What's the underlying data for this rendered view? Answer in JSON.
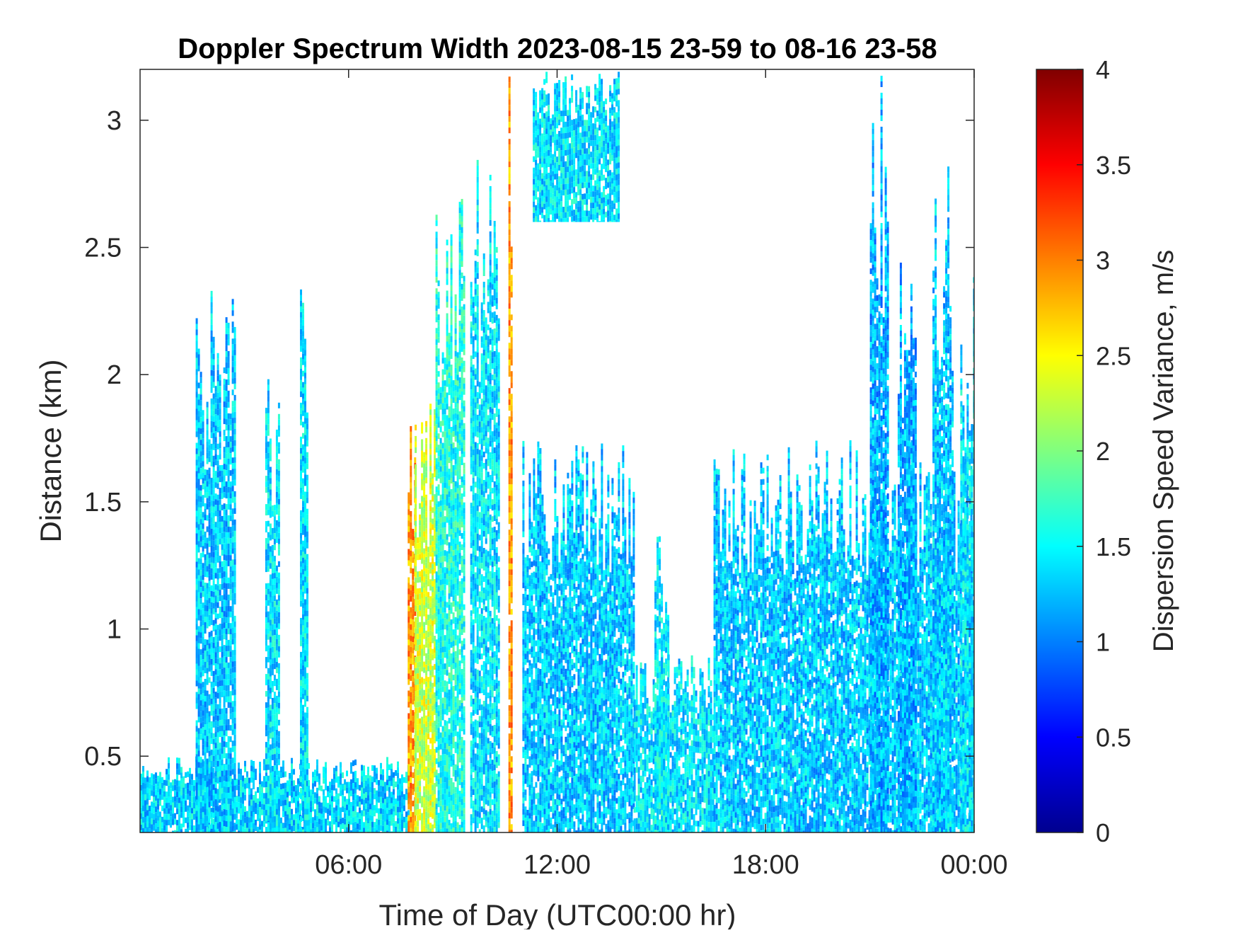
{
  "chart_data": {
    "type": "heatmap",
    "title": "Doppler Spectrum Width 2023-08-15 23-59 to 08-16 23-58",
    "xlabel": "Time of Day (UTC00:00 hr)",
    "ylabel": "Distance (km)",
    "colorbar_label": "Dispersion Speed Variance, m/s",
    "xlim": [
      0,
      24
    ],
    "ylim": [
      0.2,
      3.2
    ],
    "clim": [
      0,
      4
    ],
    "colormap": "jet",
    "grid": false,
    "x_ticks": [
      {
        "value": 6,
        "label": "06:00"
      },
      {
        "value": 12,
        "label": "12:00"
      },
      {
        "value": 18,
        "label": "18:00"
      },
      {
        "value": 24,
        "label": "00:00"
      }
    ],
    "y_ticks": [
      {
        "value": 0.5,
        "label": "0.5"
      },
      {
        "value": 1,
        "label": "1"
      },
      {
        "value": 1.5,
        "label": "1.5"
      },
      {
        "value": 2,
        "label": "2"
      },
      {
        "value": 2.5,
        "label": "2.5"
      },
      {
        "value": 3,
        "label": "3"
      }
    ],
    "colorbar_ticks": [
      {
        "value": 0,
        "label": "0"
      },
      {
        "value": 0.5,
        "label": "0.5"
      },
      {
        "value": 1,
        "label": "1"
      },
      {
        "value": 1.5,
        "label": "1.5"
      },
      {
        "value": 2,
        "label": "2"
      },
      {
        "value": 2.5,
        "label": "2.5"
      },
      {
        "value": 3,
        "label": "3"
      },
      {
        "value": 3.5,
        "label": "3.5"
      },
      {
        "value": 4,
        "label": "4"
      }
    ],
    "echo_regions": [
      {
        "t0": 0.0,
        "t1": 7.7,
        "h0": 0.2,
        "h1": 0.5,
        "value": 1.35
      },
      {
        "t0": 1.6,
        "t1": 2.7,
        "h0": 0.2,
        "h1": 2.35,
        "value": 1.3
      },
      {
        "t0": 3.6,
        "t1": 4.0,
        "h0": 0.2,
        "h1": 2.0,
        "value": 1.4
      },
      {
        "t0": 4.6,
        "t1": 4.8,
        "h0": 0.2,
        "h1": 2.45,
        "value": 1.4
      },
      {
        "t0": 7.7,
        "t1": 7.9,
        "h0": 0.2,
        "h1": 1.9,
        "value": 2.9
      },
      {
        "t0": 7.9,
        "t1": 8.5,
        "h0": 0.2,
        "h1": 1.9,
        "value": 2.3
      },
      {
        "t0": 8.5,
        "t1": 9.3,
        "h0": 0.2,
        "h1": 2.7,
        "value": 1.6
      },
      {
        "t0": 9.5,
        "t1": 10.3,
        "h0": 0.2,
        "h1": 2.9,
        "value": 1.4
      },
      {
        "t0": 10.6,
        "t1": 10.72,
        "h0": 0.2,
        "h1": 3.2,
        "value": 2.9
      },
      {
        "t0": 11.3,
        "t1": 13.8,
        "h0": 2.6,
        "h1": 3.2,
        "value": 1.4
      },
      {
        "t0": 11.0,
        "t1": 14.2,
        "h0": 0.2,
        "h1": 1.75,
        "value": 1.3
      },
      {
        "t0": 14.2,
        "t1": 16.5,
        "h0": 0.2,
        "h1": 0.9,
        "value": 1.4
      },
      {
        "t0": 14.8,
        "t1": 15.2,
        "h0": 0.2,
        "h1": 1.4,
        "value": 1.45
      },
      {
        "t0": 16.5,
        "t1": 24.0,
        "h0": 0.2,
        "h1": 1.75,
        "value": 1.3
      },
      {
        "t0": 21.0,
        "t1": 21.5,
        "h0": 0.2,
        "h1": 3.2,
        "value": 1.2
      },
      {
        "t0": 21.8,
        "t1": 22.3,
        "h0": 0.2,
        "h1": 2.6,
        "value": 1.2
      },
      {
        "t0": 22.8,
        "t1": 23.4,
        "h0": 0.2,
        "h1": 2.9,
        "value": 1.3
      },
      {
        "t0": 23.6,
        "t1": 24.0,
        "h0": 0.2,
        "h1": 2.45,
        "value": 1.4
      }
    ]
  }
}
